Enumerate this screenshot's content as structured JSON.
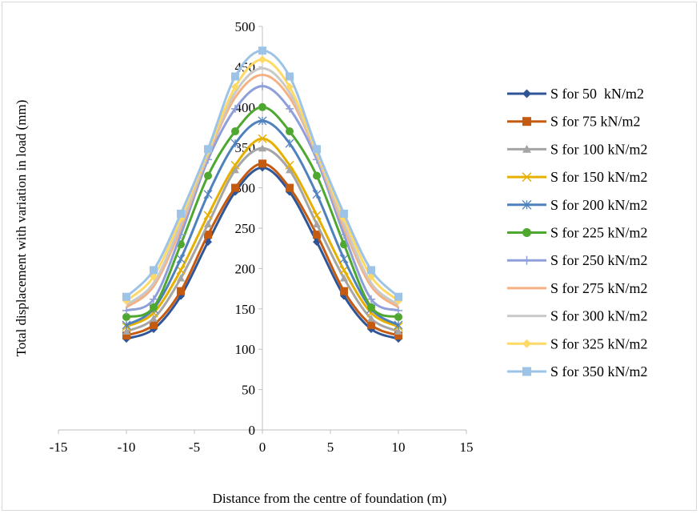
{
  "chart_data": {
    "type": "line",
    "title": "",
    "xlabel": "Distance from the centre of foundation (m)",
    "ylabel": "Total displacement with variation in load (mm)",
    "xlim": [
      -15,
      15
    ],
    "ylim": [
      0,
      500
    ],
    "xticks": [
      -15,
      -10,
      -5,
      0,
      5,
      10,
      15
    ],
    "yticks": [
      0,
      50,
      100,
      150,
      200,
      250,
      300,
      350,
      400,
      450,
      500
    ],
    "grid": false,
    "legend_position": "right",
    "x": [
      -10,
      -8,
      -6,
      -4,
      -2,
      0,
      2,
      4,
      6,
      8,
      10
    ],
    "series": [
      {
        "name": "S for 50  kN/m2",
        "color": "#2F5597",
        "marker": "diamond",
        "values": [
          113,
          125,
          166,
          233,
          295,
          325,
          295,
          233,
          166,
          125,
          113
        ]
      },
      {
        "name": "S for 75 kN/m2",
        "color": "#C55A11",
        "marker": "square",
        "values": [
          117,
          130,
          172,
          242,
          300,
          330,
          300,
          242,
          172,
          130,
          117
        ]
      },
      {
        "name": "S for 100 kN/m2",
        "color": "#A5A5A5",
        "marker": "triangle",
        "values": [
          122,
          138,
          188,
          255,
          322,
          349,
          322,
          255,
          188,
          138,
          122
        ]
      },
      {
        "name": "S for 150 kN/m2",
        "color": "#E5B000",
        "marker": "x",
        "values": [
          128,
          145,
          198,
          266,
          328,
          361,
          328,
          266,
          198,
          145,
          128
        ]
      },
      {
        "name": "S for 200 kN/m2",
        "color": "#4F81BD",
        "marker": "star",
        "values": [
          130,
          150,
          212,
          292,
          355,
          383,
          355,
          292,
          212,
          150,
          130
        ]
      },
      {
        "name": "S for 225 kN/m2",
        "color": "#4EA72E",
        "marker": "circle",
        "values": [
          140,
          152,
          230,
          315,
          370,
          400,
          370,
          315,
          230,
          152,
          140
        ]
      },
      {
        "name": "S for 250 kN/m2",
        "color": "#8E9FD9",
        "marker": "plus",
        "values": [
          148,
          162,
          242,
          335,
          398,
          426,
          398,
          335,
          242,
          162,
          148
        ]
      },
      {
        "name": "S for 275 kN/m2",
        "color": "#F4B183",
        "marker": "none",
        "values": [
          152,
          178,
          250,
          340,
          412,
          440,
          412,
          340,
          250,
          178,
          152
        ]
      },
      {
        "name": "S for 300 kN/m2",
        "color": "#C9C9C9",
        "marker": "none",
        "values": [
          155,
          182,
          255,
          342,
          418,
          448,
          418,
          342,
          255,
          182,
          155
        ]
      },
      {
        "name": "S for 325 kN/m2",
        "color": "#FFD966",
        "marker": "diamond",
        "values": [
          160,
          190,
          262,
          345,
          425,
          459,
          425,
          345,
          262,
          190,
          160
        ]
      },
      {
        "name": "S for 350 kN/m2",
        "color": "#9DC3E6",
        "marker": "square",
        "values": [
          165,
          198,
          268,
          348,
          438,
          470,
          438,
          348,
          268,
          198,
          165
        ]
      }
    ]
  }
}
